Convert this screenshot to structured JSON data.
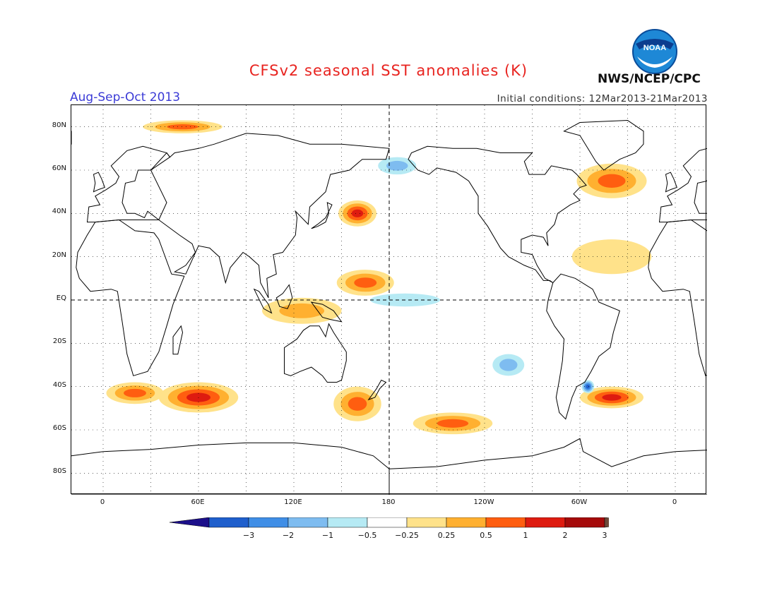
{
  "header": {
    "title": "CFSv2 seasonal SST anomalies (K)",
    "period": "Aug-Sep-Oct 2013",
    "initial_conditions": "Initial conditions: 12Mar2013-21Mar2013",
    "agency": "NWS/NCEP/CPC",
    "logo_text": "NOAA"
  },
  "axes": {
    "lat_labels": [
      "80N",
      "60N",
      "40N",
      "20N",
      "EQ",
      "20S",
      "40S",
      "60S",
      "80S"
    ],
    "lon_labels": [
      "0",
      "60E",
      "120E",
      "180",
      "120W",
      "60W",
      "0"
    ]
  },
  "legend": {
    "ticks": [
      "-3",
      "-2",
      "-1",
      "-0.5",
      "-0.25",
      "0.25",
      "0.5",
      "1",
      "2",
      "3"
    ],
    "colors": [
      "#1c0f8a",
      "#1f5fcc",
      "#3f8ee6",
      "#7ebcf0",
      "#b6eaf4",
      "#ffffff",
      "#ffe28a",
      "#ffb030",
      "#ff5e10",
      "#de1b10",
      "#a50a0a",
      "#6e4a3a"
    ]
  },
  "chart_data": {
    "type": "heatmap",
    "title": "CFSv2 seasonal SST anomalies (K)",
    "units": "K",
    "period": "Aug-Sep-Oct 2013",
    "lon_range": [
      -20,
      380
    ],
    "lat_range": [
      -90,
      90
    ],
    "contour_levels": [
      -3,
      -2,
      -1,
      -0.5,
      -0.25,
      0.25,
      0.5,
      1,
      2,
      3
    ],
    "anomaly_regions": [
      {
        "name": "North Atlantic subpolar",
        "lon": 320,
        "lat": 55,
        "rx": 22,
        "ry": 8,
        "value": 1.5
      },
      {
        "name": "North Pacific Kuroshio extension",
        "lon": 160,
        "lat": 40,
        "rx": 12,
        "ry": 6,
        "value": 2
      },
      {
        "name": "Western Pacific warm pool",
        "lon": 165,
        "lat": 8,
        "rx": 18,
        "ry": 6,
        "value": 1
      },
      {
        "name": "Maritime Continent",
        "lon": 125,
        "lat": -5,
        "rx": 25,
        "ry": 6,
        "value": 0.7
      },
      {
        "name": "Equatorial central Pacific",
        "lon": 190,
        "lat": 0,
        "rx": 22,
        "ry": 3,
        "value": -0.4
      },
      {
        "name": "Southern Ocean Indian sector",
        "lon": 60,
        "lat": -45,
        "rx": 25,
        "ry": 7,
        "value": 2
      },
      {
        "name": "Southern Ocean Atlantic",
        "lon": 20,
        "lat": -43,
        "rx": 18,
        "ry": 5,
        "value": 1.5
      },
      {
        "name": "South Pacific near NZ",
        "lon": 160,
        "lat": -48,
        "rx": 15,
        "ry": 8,
        "value": 1.5
      },
      {
        "name": "South Pacific 60S",
        "lon": 220,
        "lat": -57,
        "rx": 25,
        "ry": 5,
        "value": 1.5
      },
      {
        "name": "South Atlantic 45S",
        "lon": 320,
        "lat": -45,
        "rx": 20,
        "ry": 5,
        "value": 2
      },
      {
        "name": "Southwest Atlantic cold spot",
        "lon": 305,
        "lat": -40,
        "rx": 4,
        "ry": 3,
        "value": -2
      },
      {
        "name": "Arctic Barents warm",
        "lon": 50,
        "lat": 80,
        "rx": 25,
        "ry": 3,
        "value": 1.5
      },
      {
        "name": "Bering Sea cold",
        "lon": 185,
        "lat": 62,
        "rx": 12,
        "ry": 4,
        "value": -0.5
      },
      {
        "name": "Tropical Atlantic",
        "lon": 320,
        "lat": 20,
        "rx": 25,
        "ry": 8,
        "value": 0.3
      },
      {
        "name": "Southeast Pacific cool",
        "lon": 255,
        "lat": -30,
        "rx": 10,
        "ry": 5,
        "value": -0.5
      }
    ]
  }
}
